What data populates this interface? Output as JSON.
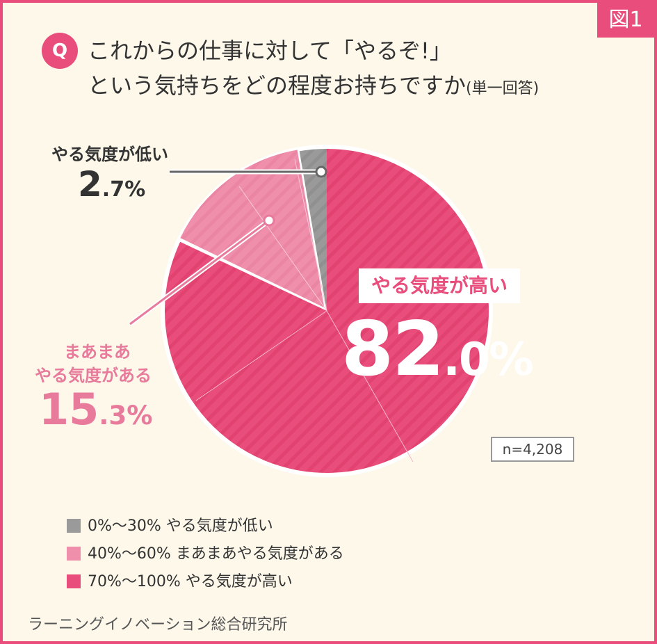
{
  "figure_label": "図1",
  "question_badge": "Q",
  "title_line1": "これからの仕事に対して「やるぞ!」",
  "title_line2": "という気持ちをどの程度お持ちですか",
  "title_sub": "(単一回答)",
  "n_label": "n=4,208",
  "footer": "ラーニングイノベーション総合研究所",
  "labels": {
    "low_name": "やる気度が低い",
    "low_int": "2",
    "low_dec": ".7%",
    "mid_name1": "まあまあ",
    "mid_name2": "やる気度がある",
    "mid_int": "15",
    "mid_dec": ".3%",
    "high_name": "やる気度が高い",
    "high_int": "82",
    "high_dec": ".0%"
  },
  "legend": [
    {
      "text": "0%～30% やる気度が低い",
      "color": "#9a9a9a"
    },
    {
      "text": "40%～60% まあまあやる気度がある",
      "color": "#ef8fac"
    },
    {
      "text": "70%～100% やる気度が高い",
      "color": "#e84d7c"
    }
  ],
  "chart_data": {
    "type": "pie",
    "categories": [
      "0%～30% やる気度が低い",
      "40%～60% まあまあやる気度がある",
      "70%～100% やる気度が高い"
    ],
    "values": [
      2.7,
      15.3,
      82.0
    ],
    "series": [
      {
        "name": "0%～30% やる気度が低い",
        "value": 2.7,
        "color": "#9a9a9a"
      },
      {
        "name": "40%～60% まあまあやる気度がある",
        "value": 15.3,
        "color": "#ef8fac"
      },
      {
        "name": "70%～100% やる気度が高い",
        "value": 82.0,
        "color": "#e84d7c"
      }
    ],
    "title": "これからの仕事に対して「やるぞ!」という気持ちをどの程度お持ちですか(単一回答)",
    "n": "n=4,208",
    "legend": "bottom-left"
  }
}
